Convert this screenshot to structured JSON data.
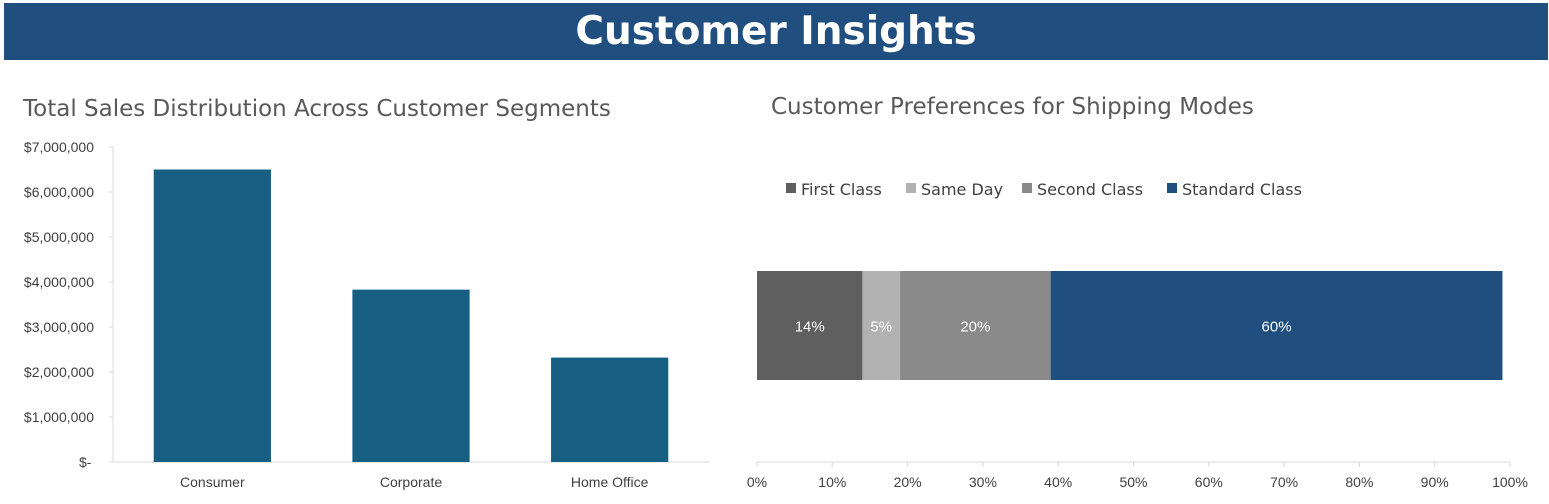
{
  "page": {
    "title": "Customer Insights",
    "banner_color": "#1F4E7F"
  },
  "chart_data": [
    {
      "type": "bar",
      "title": "Total Sales Distribution Across Customer Segments",
      "categories": [
        "Consumer",
        "Corporate",
        "Home Office"
      ],
      "values": [
        6500000,
        3830000,
        2320000
      ],
      "ylim": [
        0,
        7000000
      ],
      "yticks": [
        0,
        1000000,
        2000000,
        3000000,
        4000000,
        5000000,
        6000000,
        7000000
      ],
      "ytick_labels": [
        "$-",
        "$1,000,000",
        "$2,000,000",
        "$3,000,000",
        "$4,000,000",
        "$5,000,000",
        "$6,000,000",
        "$7,000,000"
      ],
      "color": "#165F82",
      "grid": false,
      "legend": false
    },
    {
      "type": "bar",
      "orientation": "horizontal-stacked-100",
      "title": "Customer Preferences for Shipping Modes",
      "series": [
        {
          "name": "First Class",
          "value": 0.14,
          "label": "14%",
          "color": "#5F5F5F"
        },
        {
          "name": "Same Day",
          "value": 0.05,
          "label": "5%",
          "color": "#B2B2B2"
        },
        {
          "name": "Second Class",
          "value": 0.2,
          "label": "20%",
          "color": "#898989"
        },
        {
          "name": "Standard Class",
          "value": 0.6,
          "label": "60%",
          "color": "#1F4E7F"
        }
      ],
      "xlim": [
        0,
        1
      ],
      "xtick_labels": [
        "0%",
        "10%",
        "20%",
        "30%",
        "40%",
        "50%",
        "60%",
        "70%",
        "80%",
        "90%",
        "100%"
      ],
      "legend_position": "top",
      "grid": false
    }
  ]
}
